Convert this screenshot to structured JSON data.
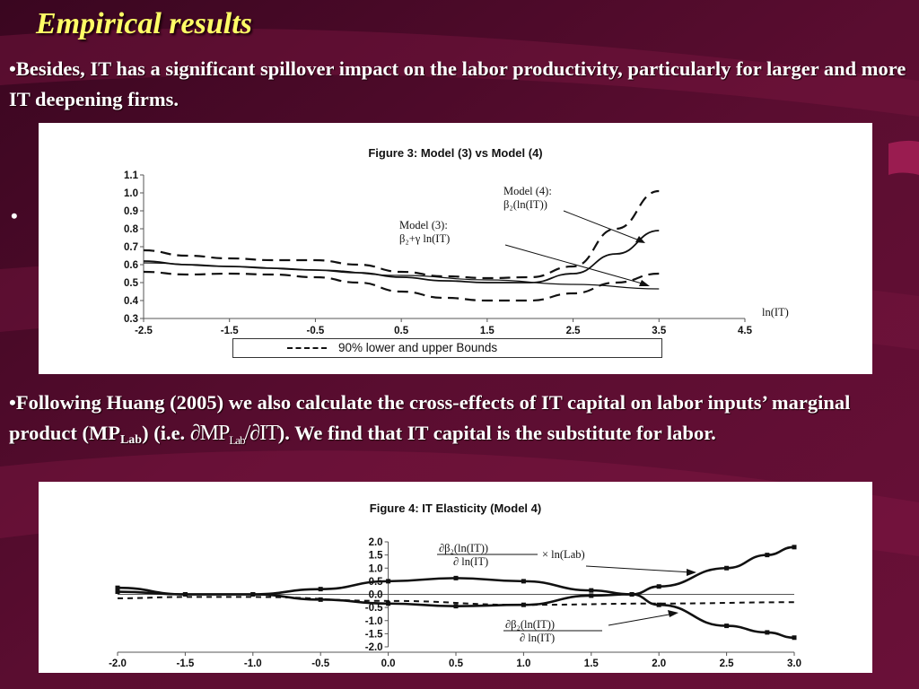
{
  "slide": {
    "title": "Empirical results",
    "paragraph1": "•Besides, IT has a significant spillover impact on the labor productivity, particularly for larger and more IT deepening firms.",
    "empty_bullet": "•",
    "p2_before": "•Following Huang (2005) we also calculate the cross-effects of IT capital on labor inputs’ marginal product (MP",
    "p2_sub": "Lab",
    "p2_mid": ") (i.e. ",
    "p2_frac_num": "∂MP",
    "p2_frac_num_sub": "Lab",
    "p2_frac_den": "/∂IT",
    "p2_after": "). We find that IT capital is the substitute for labor.",
    "colors": {
      "background": "#4a0a26",
      "title": "#ffff66",
      "text": "#ffffff"
    }
  },
  "chart_data": [
    {
      "type": "line",
      "title": "Figure 3: Model (3) vs Model (4)",
      "xlabel": "ln(IT)",
      "ylabel": "",
      "xlim": [
        -2.5,
        4.5
      ],
      "ylim": [
        0.3,
        1.1
      ],
      "x_ticks": [
        "-2.5",
        "-1.5",
        "-0.5",
        "0.5",
        "1.5",
        "2.5",
        "3.5",
        "4.5"
      ],
      "y_ticks": [
        "0.3",
        "0.4",
        "0.5",
        "0.6",
        "0.7",
        "0.8",
        "0.9",
        "1.0",
        "1.1"
      ],
      "legend": "90% lower and upper Bounds",
      "annotations": {
        "model4_line1": "Model (4):",
        "model4_line2": "β₂(ln(IT))",
        "model3_line1": "Model (3):",
        "model3_line2": "β₂+γ ln(IT)"
      },
      "series": [
        {
          "style": "solid",
          "x": [
            -2.5,
            -2,
            -1.5,
            -1,
            -0.5,
            0,
            0.5,
            1,
            1.5,
            2,
            2.5,
            3,
            3.5
          ],
          "y": [
            0.62,
            0.6,
            0.59,
            0.58,
            0.57,
            0.555,
            0.53,
            0.51,
            0.5,
            0.5,
            0.55,
            0.66,
            0.79
          ]
        },
        {
          "style": "dashed",
          "x": [
            -2.5,
            -2,
            -1.5,
            -1,
            -0.5,
            0,
            0.5,
            1,
            1.5,
            2,
            2.5,
            3,
            3.5
          ],
          "y": [
            0.68,
            0.65,
            0.635,
            0.625,
            0.625,
            0.6,
            0.56,
            0.535,
            0.525,
            0.53,
            0.59,
            0.8,
            1.01
          ]
        },
        {
          "style": "dashed",
          "x": [
            -2.5,
            -2,
            -1.5,
            -1,
            -0.5,
            0,
            0.5,
            1,
            1.5,
            2,
            2.5,
            3,
            3.5
          ],
          "y": [
            0.56,
            0.545,
            0.55,
            0.545,
            0.53,
            0.5,
            0.45,
            0.415,
            0.4,
            0.4,
            0.44,
            0.5,
            0.55
          ]
        },
        {
          "style": "thin",
          "x": [
            -2.5,
            -1.5,
            -0.5,
            0.5,
            1.5,
            2.5,
            3.5
          ],
          "y": [
            0.61,
            0.59,
            0.57,
            0.54,
            0.515,
            0.49,
            0.465
          ]
        }
      ]
    },
    {
      "type": "line",
      "title": "Figure 4:  IT Elasticity (Model 4)",
      "xlabel": "",
      "ylabel": "",
      "xlim": [
        -2.0,
        3.0
      ],
      "ylim": [
        -2.0,
        2.0
      ],
      "x_ticks": [
        "-2.0",
        "-1.5",
        "-1.0",
        "-0.5",
        "0.0",
        "0.5",
        "1.0",
        "1.5",
        "2.0",
        "2.5",
        "3.0"
      ],
      "y_ticks": [
        "-2.0",
        "-1.5",
        "-1.0",
        "-0.5",
        "0.0",
        "0.5",
        "1.0",
        "1.5",
        "2.0"
      ],
      "annotations": {
        "upper_num": "∂β₂(ln(IT))",
        "upper_den": "∂ ln(IT)",
        "upper_suffix": "× ln(Lab)",
        "lower_num": "∂β₂(ln(IT))",
        "lower_den": "∂ ln(IT)"
      },
      "series": [
        {
          "style": "markers",
          "x": [
            -2,
            -1.5,
            -1,
            -0.5,
            0,
            0.5,
            1,
            1.5,
            1.8,
            2,
            2.5,
            2.8,
            3
          ],
          "y": [
            0.1,
            0.0,
            0.0,
            -0.2,
            -0.35,
            -0.45,
            -0.4,
            -0.05,
            0.0,
            0.3,
            1.0,
            1.5,
            1.8
          ]
        },
        {
          "style": "markers",
          "x": [
            -2,
            -1.5,
            -1,
            -0.5,
            0,
            0.5,
            1,
            1.5,
            1.8,
            2,
            2.5,
            2.8,
            3
          ],
          "y": [
            0.25,
            0.0,
            0.0,
            0.2,
            0.5,
            0.62,
            0.5,
            0.15,
            0.0,
            -0.4,
            -1.2,
            -1.45,
            -1.65
          ]
        },
        {
          "style": "dashed",
          "x": [
            -2,
            -1.5,
            -1,
            0,
            1,
            2,
            3
          ],
          "y": [
            -0.15,
            -0.1,
            -0.1,
            -0.25,
            -0.4,
            -0.35,
            -0.3
          ]
        }
      ]
    }
  ]
}
